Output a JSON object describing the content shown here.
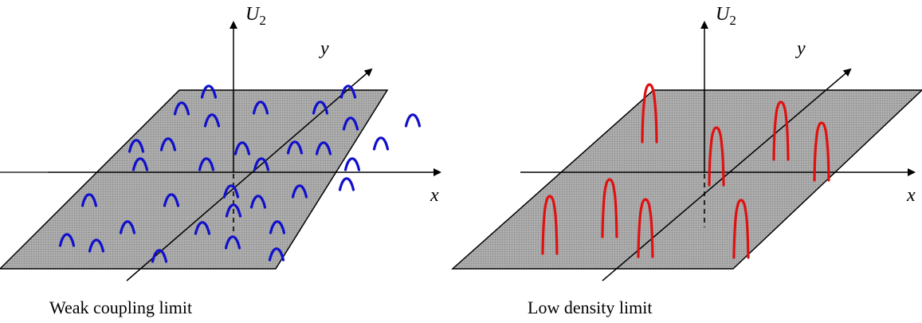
{
  "panels": [
    {
      "id": "weak",
      "caption": "Weak coupling limit",
      "z_label": "U",
      "z_sub": "2",
      "z_color": "#1010cc",
      "x_label": "x",
      "y_label": "y",
      "peak_color": "#1010cc",
      "peak_count": 33,
      "peak_style": "short-broad"
    },
    {
      "id": "low",
      "caption": "Low density limit",
      "z_label": "U",
      "z_sub": "2",
      "z_color": "#e01010",
      "x_label": "x",
      "y_label": "y",
      "peak_color": "#e01010",
      "peak_count": 8,
      "peak_style": "tall-narrow"
    }
  ],
  "colors": {
    "plane_fill": "#a6a6a6",
    "plane_stroke": "#000000",
    "axis": "#000000"
  }
}
